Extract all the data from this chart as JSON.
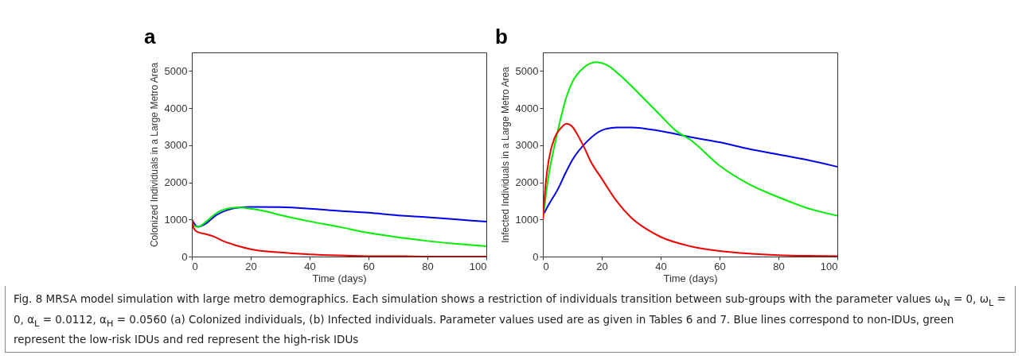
{
  "chart_data": [
    {
      "type": "line",
      "title": "a",
      "xlabel": "Time (days)",
      "ylabel": "Colonized Individuals in a Large Metro Area",
      "xlim": [
        0,
        100
      ],
      "ylim": [
        0,
        5500
      ],
      "xticks": [
        0,
        20,
        40,
        60,
        80,
        100
      ],
      "yticks": [
        0,
        1000,
        2000,
        3000,
        4000,
        5000
      ],
      "grid": false,
      "legend": false,
      "annotations": [
        "Fig. 8 MRSA model simulation with large metro demographics. Each simulation shows a restriction of individuals transition between sub-groups with the parameter values ω$_{N}$ = 0, ω$_{L}$ = 0, α$_{L}$ = 0.0112, α$_{H}$ = 0.0560 (a) Colonized individuals, (b) Infected individuals. Parameter values used are as given in Tables 6 and 7. Blue lines correspond to non-IDUs, green represent the low-risk IDUs and red represent the high-risk IDUs"
      ],
      "series": [
        {
          "color": "#0000ee",
          "x": [
            0,
            2,
            5,
            8,
            12,
            16,
            20,
            30,
            40,
            50,
            60,
            70,
            80,
            90,
            100
          ],
          "values": [
            1000,
            800,
            900,
            1100,
            1250,
            1320,
            1340,
            1330,
            1290,
            1230,
            1180,
            1110,
            1060,
            1000,
            940
          ]
        },
        {
          "color": "#00ee00",
          "x": [
            0,
            0.5,
            2,
            5,
            8,
            12,
            16,
            20,
            25,
            30,
            40,
            50,
            60,
            70,
            80,
            90,
            100
          ],
          "values": [
            1000,
            850,
            800,
            950,
            1150,
            1290,
            1320,
            1290,
            1220,
            1120,
            950,
            800,
            640,
            520,
            420,
            340,
            280
          ]
        },
        {
          "color": "#ee0000",
          "x": [
            0,
            0.5,
            1,
            2,
            5,
            8,
            10,
            15,
            20,
            30,
            40,
            50,
            60,
            70,
            80,
            100
          ],
          "values": [
            1000,
            800,
            720,
            660,
            600,
            520,
            440,
            300,
            200,
            110,
            60,
            30,
            10,
            10,
            0,
            0
          ]
        }
      ]
    },
    {
      "type": "line",
      "title": "b",
      "xlabel": "Time (days)",
      "ylabel": "Infected Individuals in a Large Metro Area",
      "xlim": [
        0,
        100
      ],
      "ylim": [
        0,
        5500
      ],
      "xticks": [
        0,
        20,
        40,
        60,
        80,
        100
      ],
      "yticks": [
        0,
        1000,
        2000,
        3000,
        4000,
        5000
      ],
      "grid": false,
      "legend": false,
      "series": [
        {
          "color": "#0000ee",
          "x": [
            0,
            2,
            5,
            8,
            10,
            15,
            20,
            25,
            30,
            40,
            50,
            60,
            70,
            80,
            90,
            100
          ],
          "values": [
            1100,
            1400,
            1800,
            2300,
            2600,
            3100,
            3400,
            3480,
            3480,
            3380,
            3220,
            3080,
            2900,
            2750,
            2600,
            2420
          ]
        },
        {
          "color": "#00ee00",
          "x": [
            0,
            2,
            4,
            6,
            8,
            10,
            14,
            18,
            22,
            26,
            30,
            35,
            40,
            45,
            50,
            60,
            70,
            80,
            90,
            100
          ],
          "values": [
            1000,
            2200,
            3000,
            3700,
            4300,
            4700,
            5100,
            5240,
            5150,
            4900,
            4600,
            4200,
            3800,
            3400,
            3150,
            2450,
            1950,
            1600,
            1300,
            1100
          ]
        },
        {
          "color": "#ee0000",
          "x": [
            0,
            1,
            2,
            4,
            6,
            8,
            10,
            12,
            14,
            16,
            20,
            25,
            30,
            35,
            40,
            50,
            60,
            70,
            80,
            90,
            100
          ],
          "values": [
            1000,
            2000,
            2600,
            3200,
            3450,
            3580,
            3500,
            3250,
            2950,
            2600,
            2100,
            1500,
            1050,
            750,
            530,
            280,
            150,
            80,
            40,
            20,
            10
          ]
        }
      ]
    }
  ]
}
